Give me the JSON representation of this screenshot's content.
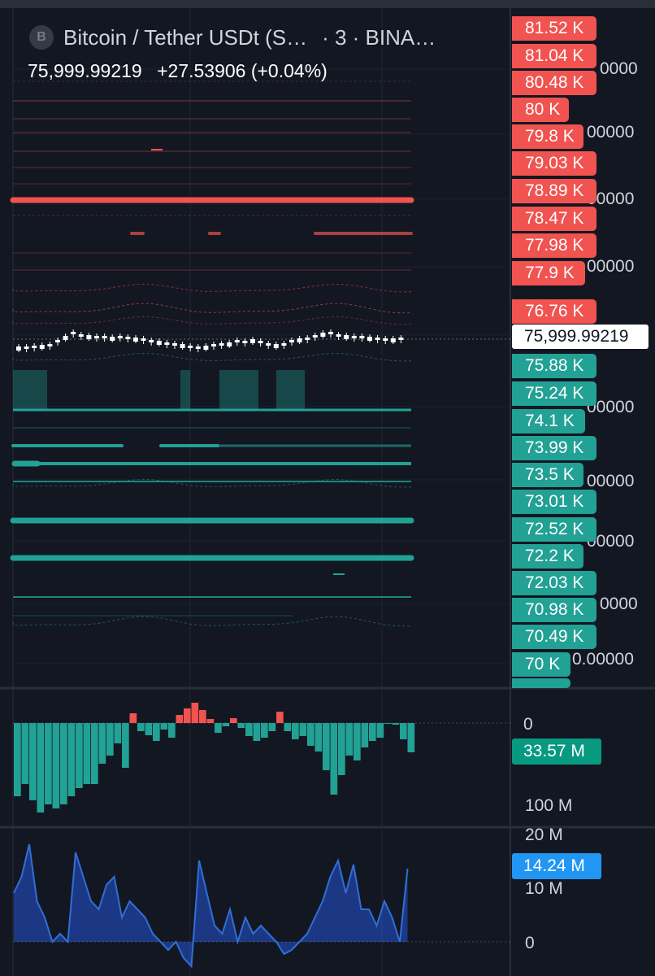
{
  "header": {
    "symbol_icon": "B",
    "symbol_title": "Bitcoin / Tether USDt (S…",
    "symbol_meta": "· 3 · BINA…",
    "last_price": "75,999.99219",
    "change": "+27.53906 (+0.04%)"
  },
  "price_scale": {
    "resistance_labels": [
      "81.52 K",
      "81.04 K",
      "80.48 K",
      "80 K",
      "79.8 K",
      "79.03 K",
      "78.89 K",
      "78.47 K",
      "77.98 K",
      "77.9 K",
      "76.76 K"
    ],
    "current_price_label": "75,999.99219",
    "support_labels": [
      "75.88 K",
      "75.24 K",
      "74.1 K",
      "73.99 K",
      "73.5 K",
      "73.01 K",
      "72.52 K",
      "72.2 K",
      "72.03 K",
      "70.98 K",
      "70.49 K",
      "70 K"
    ],
    "partial_axis_labels": [
      "0000",
      "00000",
      "00000",
      "00000",
      "00000",
      "00000",
      "00000",
      "0000",
      "0.00000"
    ]
  },
  "delta_pane": {
    "zero_label": "0",
    "tag_label": "33.57 M",
    "bottom_label": "100 M"
  },
  "volume_pane": {
    "top_label": "20 M",
    "tag_label": "14.24 M",
    "mid_label": "10 M",
    "zero_label": "0"
  },
  "colors": {
    "background": "#131722",
    "resistance": "#f05350",
    "support": "#22a195",
    "volume_area": "#2962ff",
    "volume_tag": "#2196f3",
    "delta_tag": "#089981"
  }
}
